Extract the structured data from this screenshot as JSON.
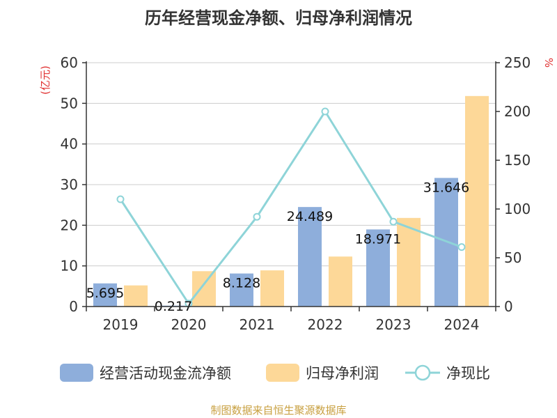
{
  "title": "历年经营现金净额、归母净利润情况",
  "footer": "制图数据来自恒生聚源数据库",
  "left_unit": "(亿元)",
  "right_unit": "%",
  "chart_data": {
    "type": "bar",
    "categories": [
      "2019",
      "2020",
      "2021",
      "2022",
      "2023",
      "2024"
    ],
    "series": [
      {
        "name": "经营活动现金流净额",
        "type": "bar",
        "axis": "left",
        "color": "#8eaedb",
        "values": [
          5.695,
          0.217,
          8.128,
          24.489,
          18.971,
          31.646
        ],
        "labels": [
          "5.695",
          "0.217",
          "8.128",
          "24.489",
          "18.971",
          "31.646"
        ]
      },
      {
        "name": "归母净利润",
        "type": "bar",
        "axis": "left",
        "color": "#fdd898",
        "values": [
          5.2,
          8.7,
          8.9,
          12.3,
          21.8,
          51.8
        ]
      },
      {
        "name": "净现比",
        "type": "line",
        "axis": "right",
        "color": "#8ed4d8",
        "values": [
          110,
          3,
          92,
          200,
          87,
          61
        ]
      }
    ],
    "ylim_left": [
      0,
      60
    ],
    "yticks_left": [
      0,
      10,
      20,
      30,
      40,
      50,
      60
    ],
    "ylim_right": [
      0,
      250
    ],
    "yticks_right": [
      0,
      50,
      100,
      150,
      200,
      250
    ],
    "grid": true,
    "legend": "bottom"
  }
}
